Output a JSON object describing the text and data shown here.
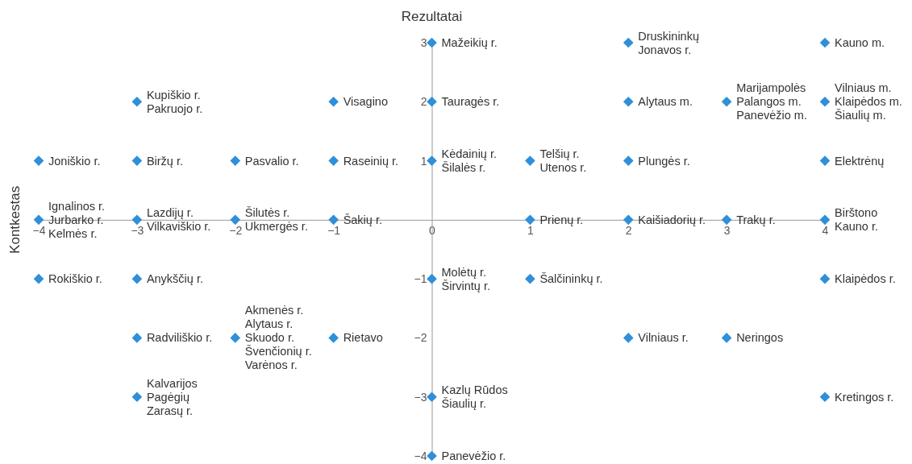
{
  "chart_data": {
    "type": "scatter",
    "title": "Rezultatai",
    "ylabel": "Kontkestas",
    "marker": "diamond",
    "grid": false,
    "xlim": [
      -4,
      4
    ],
    "ylim": [
      -4,
      3
    ],
    "xticks": [
      -4,
      -3,
      -2,
      -1,
      0,
      1,
      2,
      3,
      4
    ],
    "yticks": [
      -4,
      -3,
      -2,
      -1,
      1,
      2,
      3
    ],
    "series": [
      {
        "color": "#2f8fd8",
        "x": [
          0,
          2,
          4,
          -3,
          -1,
          0,
          2,
          3,
          4,
          -4,
          -3,
          -2,
          -1,
          0,
          1,
          2,
          4,
          -4,
          -3,
          -2,
          -1,
          1,
          2,
          3,
          4,
          -4,
          -3,
          0,
          1,
          4,
          -3,
          -2,
          -1,
          2,
          3,
          -3,
          0,
          4,
          0
        ],
        "values": [
          3,
          3,
          3,
          2,
          2,
          2,
          2,
          2,
          2,
          1,
          1,
          1,
          1,
          1,
          1,
          1,
          1,
          0,
          0,
          0,
          0,
          0,
          0,
          0,
          0,
          -1,
          -1,
          -1,
          -1,
          -1,
          -2,
          -2,
          -2,
          -2,
          -2,
          -3,
          -3,
          -3,
          -4
        ]
      }
    ],
    "annotations": [
      {
        "text": "Mažeikių r.",
        "x": 0,
        "y": 3
      },
      {
        "text": "Druskininkų",
        "x": 2,
        "y": 3
      },
      {
        "text": "Jonavos r.",
        "x": 2,
        "y": 3
      },
      {
        "text": "Kauno m.",
        "x": 4,
        "y": 3
      },
      {
        "text": "Kupiškio r.",
        "x": -3,
        "y": 2
      },
      {
        "text": "Pakruojo r.",
        "x": -3,
        "y": 2
      },
      {
        "text": "Visagino",
        "x": -1,
        "y": 2
      },
      {
        "text": "Tauragės r.",
        "x": 0,
        "y": 2
      },
      {
        "text": "Alytaus m.",
        "x": 2,
        "y": 2
      },
      {
        "text": "Marijampolės",
        "x": 3,
        "y": 2
      },
      {
        "text": "Palangos m.",
        "x": 3,
        "y": 2
      },
      {
        "text": "Panevėžio m.",
        "x": 3,
        "y": 2
      },
      {
        "text": "Vilniaus m.",
        "x": 4,
        "y": 2
      },
      {
        "text": "Klaipėdos m.",
        "x": 4,
        "y": 2
      },
      {
        "text": "Šiaulių m.",
        "x": 4,
        "y": 2
      },
      {
        "text": "Joniškio r.",
        "x": -4,
        "y": 1
      },
      {
        "text": "Biržų r.",
        "x": -3,
        "y": 1
      },
      {
        "text": "Pasvalio r.",
        "x": -2,
        "y": 1
      },
      {
        "text": "Raseinių r.",
        "x": -1,
        "y": 1
      },
      {
        "text": "Kėdainių r.",
        "x": 0,
        "y": 1
      },
      {
        "text": "Šilalės r.",
        "x": 0,
        "y": 1
      },
      {
        "text": "Telšių r.",
        "x": 1,
        "y": 1
      },
      {
        "text": "Utenos r.",
        "x": 1,
        "y": 1
      },
      {
        "text": "Plungės r.",
        "x": 2,
        "y": 1
      },
      {
        "text": "Elektrėnų",
        "x": 4,
        "y": 1
      },
      {
        "text": "Ignalinos r.",
        "x": -4,
        "y": 0
      },
      {
        "text": "Jurbarko r.",
        "x": -4,
        "y": 0
      },
      {
        "text": "Kelmės r.",
        "x": -4,
        "y": 0
      },
      {
        "text": "Lazdijų r.",
        "x": -3,
        "y": 0
      },
      {
        "text": "Vilkaviškio r.",
        "x": -3,
        "y": 0
      },
      {
        "text": "Šilutės r.",
        "x": -2,
        "y": 0
      },
      {
        "text": "Ukmergės r.",
        "x": -2,
        "y": 0
      },
      {
        "text": "Šakių r.",
        "x": -1,
        "y": 0
      },
      {
        "text": "Prienų r.",
        "x": 1,
        "y": 0
      },
      {
        "text": "Kaišiadorių r.",
        "x": 2,
        "y": 0
      },
      {
        "text": "Trakų r.",
        "x": 3,
        "y": 0
      },
      {
        "text": "Birštono",
        "x": 4,
        "y": 0
      },
      {
        "text": "Kauno r.",
        "x": 4,
        "y": 0
      },
      {
        "text": "Rokiškio r.",
        "x": -4,
        "y": -1
      },
      {
        "text": "Anykščių r.",
        "x": -3,
        "y": -1
      },
      {
        "text": "Molėtų r.",
        "x": 0,
        "y": -1
      },
      {
        "text": "Širvintų r.",
        "x": 0,
        "y": -1
      },
      {
        "text": "Šalčininkų r.",
        "x": 1,
        "y": -1
      },
      {
        "text": "Klaipėdos r.",
        "x": 4,
        "y": -1
      },
      {
        "text": "Radviliškio r.",
        "x": -3,
        "y": -2
      },
      {
        "text": "Akmenės r.",
        "x": -2,
        "y": -2
      },
      {
        "text": "Alytaus r.",
        "x": -2,
        "y": -2
      },
      {
        "text": "Skuodo r.",
        "x": -2,
        "y": -2
      },
      {
        "text": "Švenčionių r.",
        "x": -2,
        "y": -2
      },
      {
        "text": "Varėnos r.",
        "x": -2,
        "y": -2
      },
      {
        "text": "Rietavo",
        "x": -1,
        "y": -2
      },
      {
        "text": "Vilniaus r.",
        "x": 2,
        "y": -2
      },
      {
        "text": "Neringos",
        "x": 3,
        "y": -2
      },
      {
        "text": "Kalvarijos",
        "x": -3,
        "y": -3
      },
      {
        "text": "Pagėgių",
        "x": -3,
        "y": -3
      },
      {
        "text": "Zarasų r.",
        "x": -3,
        "y": -3
      },
      {
        "text": "Kazlų Rūdos",
        "x": 0,
        "y": -3
      },
      {
        "text": "Šiaulių r.",
        "x": 0,
        "y": -3
      },
      {
        "text": "Kretingos r.",
        "x": 4,
        "y": -3
      },
      {
        "text": "Panevėžio r.",
        "x": 0,
        "y": -4
      }
    ]
  }
}
